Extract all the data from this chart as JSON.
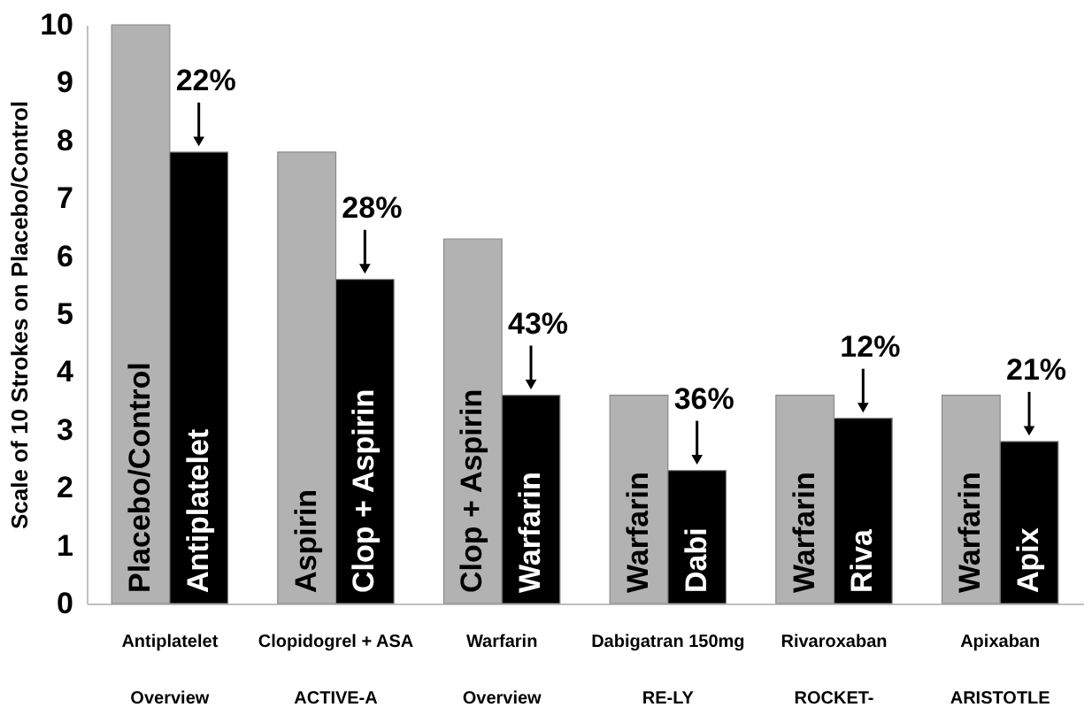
{
  "chart_data": {
    "type": "bar",
    "ylabel": "Scale of 10 Strokes on Placebo/Control",
    "categories": [
      "Antiplatelet\nOverview",
      "Clopidogrel + ASA\nACTIVE-A",
      "Warfarin\nOverview",
      "Dabigatran 150mg\nRE-LY",
      "Rivaroxaban\nROCKET-",
      "Apixaban\nARISTOTLE"
    ],
    "series": [
      {
        "color": "#b2b2b2",
        "values": [
          10,
          7.8,
          6.3,
          3.6,
          3.6,
          3.6
        ],
        "value_labels": [
          "Placebo/Control",
          "Aspirin",
          "Clop + Aspirin",
          "Warfarin",
          "Warfarin",
          "Warfarin"
        ]
      },
      {
        "color": "#000000",
        "values": [
          7.8,
          5.6,
          3.6,
          2.3,
          3.2,
          2.8
        ],
        "value_labels": [
          "Antiplatelet",
          "Clop + Aspirin",
          "Warfarin",
          "Dabi",
          "Riva",
          "Apix"
        ]
      }
    ],
    "annotations": [
      {
        "text": "22%",
        "x": "Antiplatelet\nOverview",
        "y": 7.8
      },
      {
        "text": "28%",
        "x": "Clopidogrel + ASA\nACTIVE-A",
        "y": 5.6
      },
      {
        "text": "43%",
        "x": "Warfarin\nOverview",
        "y": 3.6
      },
      {
        "text": "36%",
        "x": "Dabigatran 150mg\nRE-LY",
        "y": 2.3
      },
      {
        "text": "12%",
        "x": "Rivaroxaban\nROCKET-",
        "y": 3.2
      },
      {
        "text": "21%",
        "x": "Apixaban\nARISTOTLE",
        "y": 2.8
      }
    ],
    "ylim": [
      0,
      10
    ],
    "yticks": [
      0,
      1,
      2,
      3,
      4,
      5,
      6,
      7,
      8,
      9,
      10
    ],
    "grid": false,
    "legend": false
  }
}
